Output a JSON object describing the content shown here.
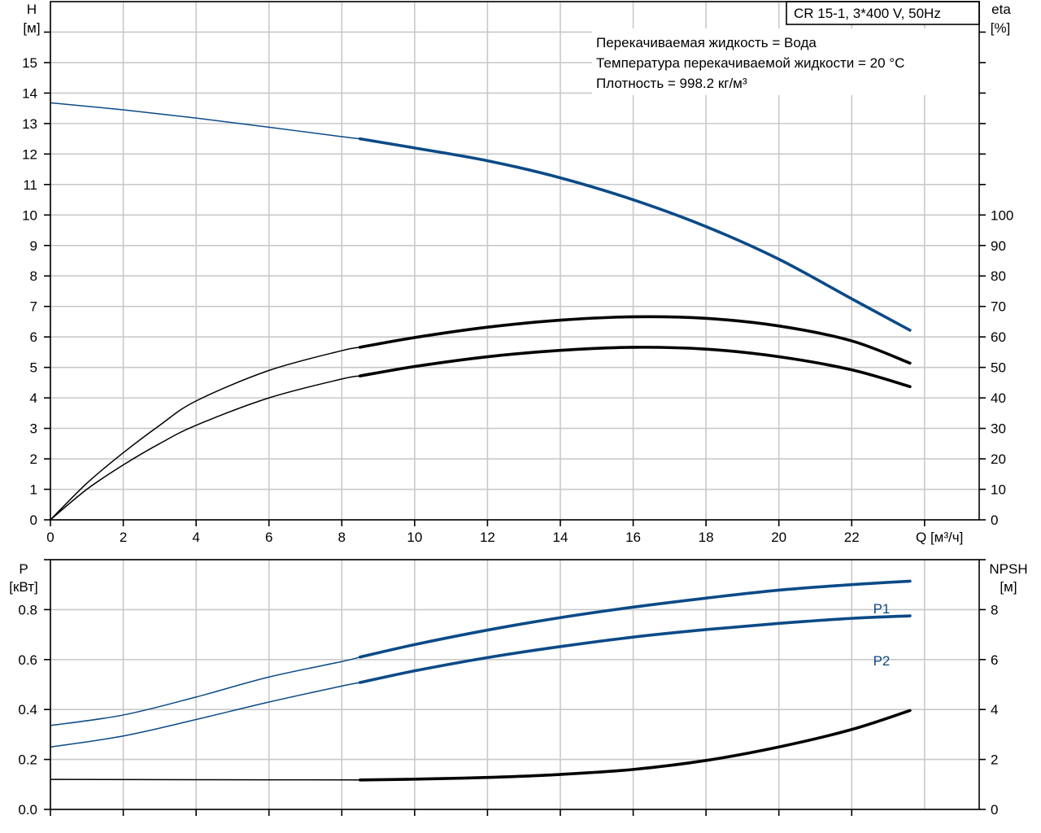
{
  "chart_data": [
    {
      "type": "line",
      "title": "CR 15-1, 3*400 V, 50Hz",
      "annotations": [
        "Перекачиваемая жидкость = Вода",
        "Температура перекачиваемой жидкости = 20 °C",
        "Плотность = 998.2 кг/м³"
      ],
      "xlabel": "Q [м³/ч]",
      "ylabel_left": [
        "H",
        "[м]"
      ],
      "ylabel_right": [
        "eta",
        "[%]"
      ],
      "xlim": [
        0,
        25.5
      ],
      "ylim_left": [
        0,
        17
      ],
      "ylim_right": [
        0,
        170
      ],
      "x_ticks": [
        0,
        2,
        4,
        6,
        8,
        10,
        12,
        14,
        16,
        18,
        20,
        22
      ],
      "y_ticks_left": [
        0,
        1,
        2,
        3,
        4,
        5,
        6,
        7,
        8,
        9,
        10,
        11,
        12,
        13,
        14,
        15
      ],
      "y_ticks_right": [
        0,
        10,
        20,
        30,
        40,
        50,
        60,
        70,
        80,
        90,
        100
      ],
      "grid": true,
      "legend": "none",
      "series": [
        {
          "color": "#0b4a87",
          "axis": "left",
          "thin_until_x": 8.5,
          "points": [
            [
              0,
              13.68
            ],
            [
              2,
              13.45
            ],
            [
              4,
              13.18
            ],
            [
              6,
              12.88
            ],
            [
              8,
              12.57
            ],
            [
              8.5,
              12.5
            ],
            [
              10,
              12.2
            ],
            [
              12,
              11.78
            ],
            [
              14,
              11.22
            ],
            [
              16,
              10.5
            ],
            [
              18,
              9.62
            ],
            [
              20,
              8.55
            ],
            [
              22,
              7.25
            ],
            [
              23.6,
              6.22
            ]
          ]
        },
        {
          "color": "#000000",
          "axis": "right",
          "thin_until_x": 8.5,
          "points": [
            [
              0,
              0
            ],
            [
              1,
              12
            ],
            [
              2,
              22
            ],
            [
              3,
              31
            ],
            [
              4,
              39
            ],
            [
              6,
              49
            ],
            [
              8,
              55.5
            ],
            [
              8.5,
              56.6
            ],
            [
              10,
              59.8
            ],
            [
              12,
              63.2
            ],
            [
              14,
              65.5
            ],
            [
              16,
              66.6
            ],
            [
              18,
              66.1
            ],
            [
              20,
              63.6
            ],
            [
              22,
              58.7
            ],
            [
              23.6,
              51.4
            ]
          ]
        },
        {
          "color": "#000000",
          "axis": "right",
          "thin_until_x": 8.5,
          "points": [
            [
              0,
              0
            ],
            [
              1,
              10
            ],
            [
              2,
              18
            ],
            [
              3,
              25
            ],
            [
              4,
              31
            ],
            [
              6,
              40
            ],
            [
              8,
              46.2
            ],
            [
              8.5,
              47.2
            ],
            [
              10,
              50.3
            ],
            [
              12,
              53.5
            ],
            [
              14,
              55.6
            ],
            [
              16,
              56.6
            ],
            [
              18,
              56
            ],
            [
              20,
              53.5
            ],
            [
              22,
              49.2
            ],
            [
              23.6,
              43.7
            ]
          ]
        }
      ]
    },
    {
      "type": "line",
      "ylabel_left": [
        "P",
        "[кВт]"
      ],
      "ylabel_right": [
        "NPSH",
        "[м]"
      ],
      "xlim": [
        0,
        25.5
      ],
      "ylim_left": [
        0,
        1.0
      ],
      "ylim_right": [
        0,
        10
      ],
      "y_ticks_left": [
        "0.0",
        "0.2",
        "0.4",
        "0.6",
        "0.8"
      ],
      "y_ticks_right": [
        0,
        2,
        4,
        6,
        8
      ],
      "grid": true,
      "legend": "none",
      "series": [
        {
          "name": "P1",
          "color": "#0b4a87",
          "axis": "left",
          "thin_until_x": 8.5,
          "points": [
            [
              0,
              0.336
            ],
            [
              2,
              0.378
            ],
            [
              4,
              0.45
            ],
            [
              6,
              0.53
            ],
            [
              8,
              0.592
            ],
            [
              8.5,
              0.61
            ],
            [
              10,
              0.66
            ],
            [
              12,
              0.718
            ],
            [
              14,
              0.768
            ],
            [
              16,
              0.81
            ],
            [
              18,
              0.846
            ],
            [
              20,
              0.878
            ],
            [
              22,
              0.9
            ],
            [
              23.6,
              0.914
            ]
          ]
        },
        {
          "name": "P2",
          "color": "#0b4a87",
          "axis": "left",
          "thin_until_x": 8.5,
          "points": [
            [
              0,
              0.25
            ],
            [
              2,
              0.294
            ],
            [
              4,
              0.36
            ],
            [
              6,
              0.43
            ],
            [
              8,
              0.494
            ],
            [
              8.5,
              0.508
            ],
            [
              10,
              0.555
            ],
            [
              12,
              0.608
            ],
            [
              14,
              0.652
            ],
            [
              16,
              0.69
            ],
            [
              18,
              0.72
            ],
            [
              20,
              0.745
            ],
            [
              22,
              0.765
            ],
            [
              23.6,
              0.775
            ]
          ]
        },
        {
          "color": "#000000",
          "axis": "right",
          "thin_until_x": 8.5,
          "points": [
            [
              0,
              1.2
            ],
            [
              4,
              1.19
            ],
            [
              8.5,
              1.18
            ],
            [
              10,
              1.21
            ],
            [
              12,
              1.28
            ],
            [
              14,
              1.4
            ],
            [
              16,
              1.6
            ],
            [
              18,
              1.96
            ],
            [
              20,
              2.5
            ],
            [
              22,
              3.2
            ],
            [
              23.6,
              3.96
            ]
          ]
        }
      ]
    }
  ]
}
